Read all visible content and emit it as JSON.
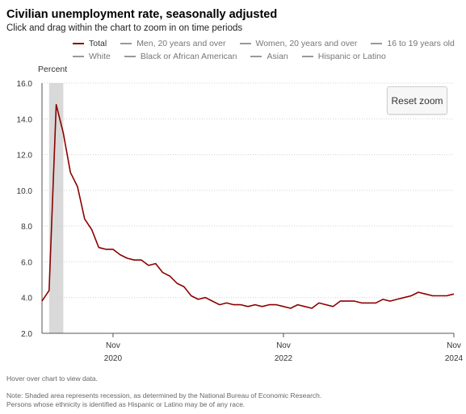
{
  "header": {
    "title": "Civilian unemployment rate, seasonally adjusted",
    "subtitle": "Click and drag within the chart to zoom in on time periods"
  },
  "legend": {
    "row1": [
      {
        "label": "Total",
        "color": "#8b0000",
        "active": true
      },
      {
        "label": "Men, 20 years and over",
        "color": "#999999",
        "active": false
      },
      {
        "label": "Women, 20 years and over",
        "color": "#999999",
        "active": false
      },
      {
        "label": "16 to 19 years old",
        "color": "#999999",
        "active": false
      }
    ],
    "row2": [
      {
        "label": "White",
        "color": "#999999",
        "active": false
      },
      {
        "label": "Black or African American",
        "color": "#999999",
        "active": false
      },
      {
        "label": "Asian",
        "color": "#999999",
        "active": false
      },
      {
        "label": "Hispanic or Latino",
        "color": "#999999",
        "active": false
      }
    ]
  },
  "controls": {
    "reset_zoom_label": "Reset zoom"
  },
  "footer": {
    "hover_note": "Hover over chart to view data.",
    "note_line1": "Note: Shaded area represents recession, as determined by the National Bureau of Economic Research.",
    "note_line2": "Persons whose ethnicity is identified as Hispanic or Latino may be of any race."
  },
  "chart_data": {
    "type": "line",
    "ylabel": "Percent",
    "ylim": [
      2.0,
      16.0
    ],
    "yticks": [
      "2.0",
      "4.0",
      "6.0",
      "8.0",
      "10.0",
      "12.0",
      "14.0",
      "16.0"
    ],
    "xticks": [
      {
        "date": "2020-11",
        "month": "Nov",
        "year": "2020"
      },
      {
        "date": "2022-11",
        "month": "Nov",
        "year": "2022"
      },
      {
        "date": "2024-11",
        "month": "Nov",
        "year": "2024"
      }
    ],
    "xlim": [
      "2020-01",
      "2024-11"
    ],
    "grid": true,
    "line_color": "#8b0000",
    "recession_shading": {
      "start": "2020-02",
      "end": "2020-04",
      "color": "#d9d9d9"
    },
    "series": [
      {
        "name": "Total",
        "x": [
          "2020-01",
          "2020-02",
          "2020-03",
          "2020-04",
          "2020-05",
          "2020-06",
          "2020-07",
          "2020-08",
          "2020-09",
          "2020-10",
          "2020-11",
          "2020-12",
          "2021-01",
          "2021-02",
          "2021-03",
          "2021-04",
          "2021-05",
          "2021-06",
          "2021-07",
          "2021-08",
          "2021-09",
          "2021-10",
          "2021-11",
          "2021-12",
          "2022-01",
          "2022-02",
          "2022-03",
          "2022-04",
          "2022-05",
          "2022-06",
          "2022-07",
          "2022-08",
          "2022-09",
          "2022-10",
          "2022-11",
          "2022-12",
          "2023-01",
          "2023-02",
          "2023-03",
          "2023-04",
          "2023-05",
          "2023-06",
          "2023-07",
          "2023-08",
          "2023-09",
          "2023-10",
          "2023-11",
          "2023-12",
          "2024-01",
          "2024-02",
          "2024-03",
          "2024-04",
          "2024-05",
          "2024-06",
          "2024-07",
          "2024-08",
          "2024-09",
          "2024-10",
          "2024-11"
        ],
        "values": [
          3.8,
          4.4,
          14.8,
          13.2,
          11.0,
          10.2,
          8.4,
          7.8,
          6.8,
          6.7,
          6.7,
          6.4,
          6.2,
          6.1,
          6.1,
          5.8,
          5.9,
          5.4,
          5.2,
          4.8,
          4.6,
          4.1,
          3.9,
          4.0,
          3.8,
          3.6,
          3.7,
          3.6,
          3.6,
          3.5,
          3.6,
          3.5,
          3.6,
          3.6,
          3.5,
          3.4,
          3.6,
          3.5,
          3.4,
          3.7,
          3.6,
          3.5,
          3.8,
          3.8,
          3.8,
          3.7,
          3.7,
          3.7,
          3.9,
          3.8,
          3.9,
          4.0,
          4.1,
          4.3,
          4.2,
          4.1,
          4.1,
          4.1,
          4.2
        ]
      }
    ]
  }
}
